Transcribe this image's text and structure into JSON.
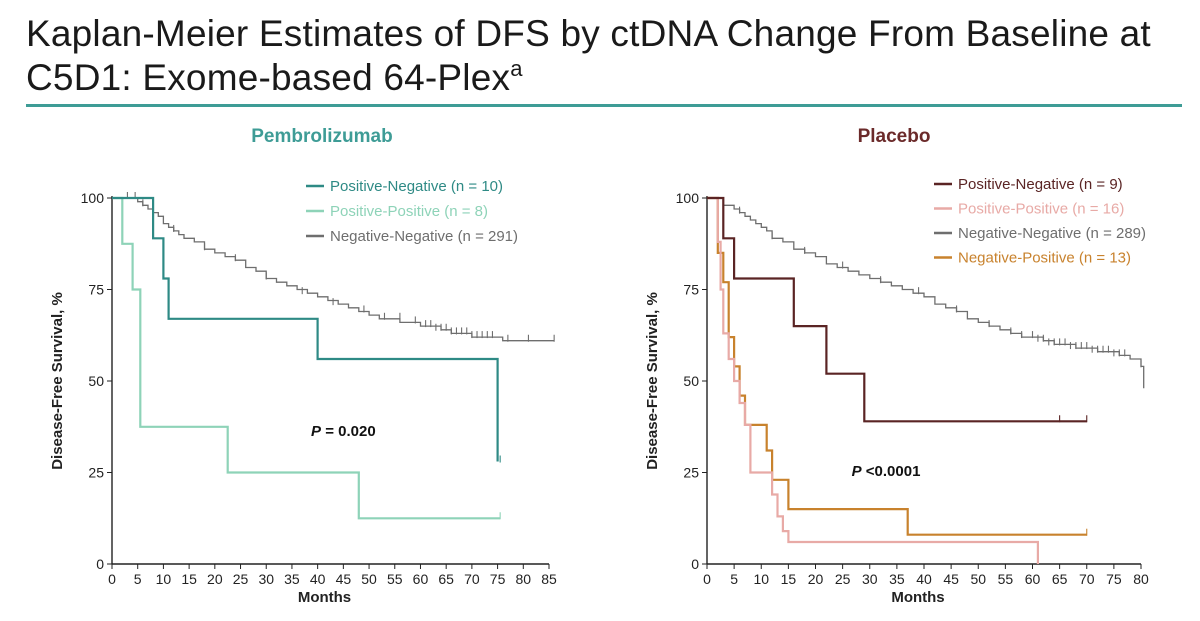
{
  "title": {
    "text": "Kaplan-Meier Estimates of DFS by ctDNA Change From Baseline at C5D1: Exome-based 64-Plex",
    "superscript": "a"
  },
  "colors": {
    "title_rule": "#3e9c96",
    "pembro_title": "#3e9c96",
    "placebo_title": "#6b2a2a"
  },
  "chart_data": [
    {
      "type": "line",
      "subtype": "kaplan-meier step",
      "title": "Pembrolizumab",
      "title_color": "#3e9c96",
      "xlabel": "Months",
      "ylabel": "Disease-Free Survival, %",
      "xlim": [
        0,
        85
      ],
      "ylim": [
        0,
        100
      ],
      "xticks": [
        "0",
        "5",
        "10",
        "15",
        "20",
        "25",
        "30",
        "35",
        "40",
        "45",
        "50",
        "55",
        "60",
        "65",
        "70",
        "75",
        "80",
        "85"
      ],
      "yticks": [
        "0",
        "25",
        "50",
        "75",
        "100"
      ],
      "grid": false,
      "legend_position": "top-right",
      "annotation": {
        "p_label": "P",
        "p_rest": " = 0.020",
        "x": 45,
        "y": 35
      },
      "series": [
        {
          "name": "Positive-Negative (n = 10)",
          "color": "#2e8a85",
          "width": 2.2,
          "x": [
            0,
            8,
            8,
            10,
            10,
            11,
            11,
            40,
            40,
            75,
            75
          ],
          "y": [
            100,
            100,
            89,
            89,
            78,
            78,
            67,
            67,
            56,
            56,
            28
          ],
          "censor_x": [
            75.5
          ],
          "censor_y": [
            28
          ]
        },
        {
          "name": "Positive-Positive (n = 8)",
          "color": "#8ed3b8",
          "width": 2.2,
          "x": [
            0,
            2,
            2,
            4,
            4,
            5.5,
            5.5,
            22.5,
            22.5,
            48,
            48,
            75.5
          ],
          "y": [
            100,
            100,
            87.5,
            87.5,
            75,
            75,
            37.5,
            37.5,
            25,
            25,
            12.5,
            12.5
          ],
          "censor_x": [
            75.5
          ],
          "censor_y": [
            12.5
          ]
        },
        {
          "name": "Negative-Negative (n = 291)",
          "color": "#6e6e6e",
          "width": 1.3,
          "x": [
            0,
            4,
            5,
            6,
            7,
            8,
            9,
            10,
            11,
            12,
            13,
            14,
            15,
            16,
            18,
            20,
            22,
            24,
            26,
            28,
            30,
            32,
            34,
            36,
            38,
            40,
            42,
            44,
            46,
            48,
            50,
            52,
            54,
            56,
            58,
            60,
            62,
            64,
            66,
            68,
            70,
            72,
            74,
            76,
            80,
            86
          ],
          "y": [
            100,
            100,
            99,
            98,
            97,
            96,
            95,
            93,
            92,
            91,
            90,
            89,
            89,
            88,
            86,
            85,
            84,
            83,
            81,
            80,
            78,
            77,
            76,
            75,
            74,
            73,
            72,
            71,
            70,
            69,
            68,
            67,
            67,
            66,
            66,
            65,
            65,
            64,
            63,
            63,
            62,
            62,
            62,
            61,
            61,
            61
          ],
          "censor_x": [
            3,
            4.5,
            6,
            12,
            18,
            24,
            30,
            37,
            43,
            49,
            53,
            56,
            59,
            61,
            62,
            63,
            64,
            65,
            66,
            67,
            68,
            69,
            70,
            71,
            72,
            73,
            74,
            77,
            81,
            86
          ],
          "censor_y": [
            100,
            100,
            98,
            91,
            86,
            83,
            78,
            74,
            71,
            69,
            67,
            67,
            66,
            65,
            65,
            64,
            64,
            64,
            63,
            63,
            63,
            63,
            62,
            62,
            62,
            62,
            62,
            61,
            61,
            61
          ]
        }
      ]
    },
    {
      "type": "line",
      "subtype": "kaplan-meier step",
      "title": "Placebo",
      "title_color": "#6b2a2a",
      "xlabel": "Months",
      "ylabel": "Disease-Free Survival, %",
      "xlim": [
        0,
        80
      ],
      "ylim": [
        0,
        100
      ],
      "xticks": [
        "0",
        "5",
        "10",
        "15",
        "20",
        "25",
        "30",
        "35",
        "40",
        "45",
        "50",
        "55",
        "60",
        "65",
        "70",
        "75",
        "80"
      ],
      "yticks": [
        "0",
        "25",
        "50",
        "75",
        "100"
      ],
      "grid": false,
      "legend_position": "top-right",
      "annotation": {
        "p_label": "P",
        "p_rest": " <0.0001",
        "x": 33,
        "y": 24
      },
      "series": [
        {
          "name": "Positive-Negative (n = 9)",
          "color": "#5a2424",
          "width": 2.2,
          "x": [
            0,
            3,
            3,
            5,
            5,
            16,
            16,
            22,
            22,
            29,
            29,
            70
          ],
          "y": [
            100,
            100,
            89,
            89,
            78,
            78,
            65,
            65,
            52,
            52,
            39,
            39
          ],
          "censor_x": [
            65,
            70
          ],
          "censor_y": [
            39,
            39
          ]
        },
        {
          "name": "Positive-Positive (n = 16)",
          "color": "#e8aaa6",
          "width": 2.2,
          "x": [
            0,
            2,
            2,
            2.5,
            2.5,
            3,
            3,
            4,
            4,
            5,
            5,
            6,
            6,
            7,
            7,
            8,
            8,
            12,
            12,
            13,
            13,
            14,
            14,
            15,
            15,
            61,
            61
          ],
          "y": [
            100,
            100,
            88,
            88,
            75,
            75,
            63,
            63,
            56,
            56,
            50,
            50,
            44,
            44,
            38,
            38,
            25,
            25,
            19,
            19,
            13,
            13,
            9,
            9,
            6,
            6,
            0
          ],
          "censor_x": [],
          "censor_y": []
        },
        {
          "name": "Negative-Negative (n = 289)",
          "color": "#6e6e6e",
          "width": 1.3,
          "x": [
            0,
            3,
            4,
            5,
            6,
            7,
            8,
            9,
            10,
            11,
            12,
            14,
            16,
            18,
            20,
            22,
            24,
            26,
            28,
            30,
            32,
            34,
            36,
            38,
            40,
            42,
            44,
            46,
            48,
            50,
            52,
            54,
            56,
            58,
            60,
            62,
            64,
            66,
            68,
            70,
            72,
            74,
            76,
            78,
            80,
            80.5
          ],
          "y": [
            100,
            98,
            98,
            97,
            96,
            95,
            94,
            93,
            92,
            91,
            89,
            88,
            86,
            85,
            84,
            82,
            81,
            80,
            79,
            78,
            77,
            76,
            75,
            74,
            73,
            71,
            70,
            69,
            67,
            66,
            65,
            64,
            63,
            62,
            62,
            61,
            60,
            60,
            59,
            59,
            58,
            58,
            57,
            56,
            54,
            48
          ],
          "censor_x": [
            6,
            12,
            18,
            25,
            32,
            39,
            46,
            52,
            56,
            58,
            60,
            61,
            62,
            63,
            64,
            65,
            66,
            67,
            68,
            69,
            70,
            71,
            72,
            73,
            74,
            75,
            76,
            77,
            80
          ],
          "censor_y": [
            96,
            89,
            85,
            81,
            77,
            74,
            69,
            65,
            63,
            62,
            62,
            61,
            61,
            60,
            60,
            60,
            60,
            59,
            59,
            59,
            59,
            58,
            58,
            58,
            58,
            57,
            57,
            57,
            54
          ]
        },
        {
          "name": "Negative-Positive (n = 13)",
          "color": "#c8822d",
          "width": 2.2,
          "x": [
            0,
            2,
            2,
            3,
            3,
            4,
            4,
            5,
            5,
            6,
            6,
            7,
            7,
            11,
            11,
            12,
            12,
            13,
            13,
            15,
            15,
            37,
            37,
            70
          ],
          "y": [
            100,
            100,
            85,
            85,
            77,
            77,
            62,
            62,
            54,
            54,
            46,
            46,
            38,
            38,
            31,
            31,
            23,
            23,
            23,
            23,
            15,
            15,
            8,
            8
          ],
          "censor_x": [
            70
          ],
          "censor_y": [
            8
          ]
        }
      ]
    }
  ]
}
